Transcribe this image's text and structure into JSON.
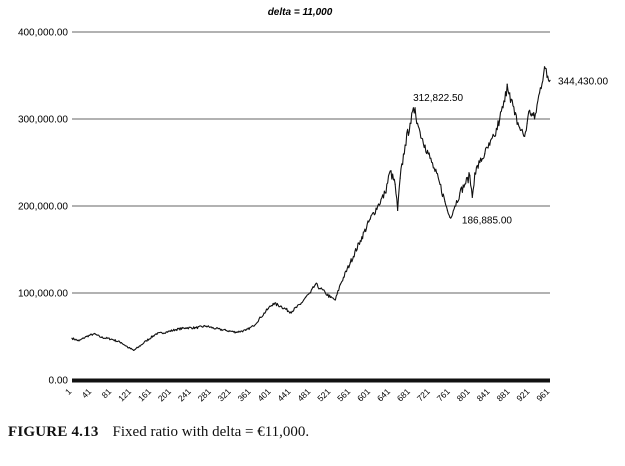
{
  "chart_data": {
    "type": "line",
    "title": "delta = 11,000",
    "xlabel": "",
    "ylabel": "",
    "xlim": [
      1,
      961
    ],
    "ylim": [
      0,
      400000
    ],
    "yticks": [
      {
        "value": 0,
        "label": "0.00"
      },
      {
        "value": 100000,
        "label": "100,000.00"
      },
      {
        "value": 200000,
        "label": "200,000.00"
      },
      {
        "value": 300000,
        "label": "300,000.00"
      },
      {
        "value": 400000,
        "label": "400,000.00"
      }
    ],
    "xticks": [
      "1",
      "41",
      "81",
      "121",
      "161",
      "201",
      "241",
      "281",
      "321",
      "361",
      "401",
      "441",
      "481",
      "521",
      "561",
      "601",
      "641",
      "681",
      "721",
      "761",
      "801",
      "841",
      "881",
      "921",
      "961"
    ],
    "grid": "horizontal",
    "series": [
      {
        "x": [
          1,
          15,
          30,
          45,
          60,
          80,
          100,
          115,
          125,
          135,
          150,
          170,
          190,
          210,
          230,
          250,
          270,
          290,
          310,
          330,
          350,
          365,
          380,
          395,
          405,
          420,
          440,
          460,
          470,
          480,
          490,
          500,
          510,
          520,
          530,
          540,
          560,
          580,
          600,
          615,
          630,
          640,
          650,
          655,
          660,
          670,
          680,
          690,
          695,
          700,
          710,
          720,
          730,
          740,
          750,
          755,
          760,
          770,
          780,
          790,
          800,
          805,
          810,
          820,
          830,
          840,
          850,
          860,
          870,
          875,
          880,
          890,
          900,
          910,
          915,
          920,
          930,
          940,
          950,
          955,
          961
        ],
        "y": [
          48000,
          45000,
          50000,
          53000,
          49000,
          47000,
          43000,
          37000,
          34000,
          38000,
          45000,
          53000,
          55000,
          58000,
          60000,
          60000,
          62000,
          59000,
          57000,
          55000,
          57000,
          62000,
          72000,
          82000,
          88000,
          85000,
          78000,
          87000,
          95000,
          100000,
          110000,
          105000,
          100000,
          95000,
          92000,
          110000,
          135000,
          160000,
          185000,
          200000,
          215000,
          240000,
          225000,
          195000,
          232000,
          270000,
          295000,
          312822.5,
          295000,
          285000,
          270000,
          255000,
          240000,
          225000,
          205000,
          195000,
          186885,
          200000,
          215000,
          225000,
          235000,
          210000,
          238000,
          250000,
          260000,
          270000,
          280000,
          300000,
          320000,
          340000,
          330000,
          305000,
          290000,
          280000,
          295000,
          310000,
          300000,
          330000,
          360000,
          348000,
          344430
        ]
      }
    ],
    "annotations": [
      {
        "x": 690,
        "y": 312822.5,
        "label": "312,822.50",
        "position": "above-right"
      },
      {
        "x": 760,
        "y": 186885,
        "label": "186,885.00",
        "position": "right"
      },
      {
        "x": 961,
        "y": 344430,
        "label": "344,430.00",
        "position": "right"
      }
    ]
  },
  "caption": {
    "label": "FIGURE 4.13",
    "text": "Fixed ratio with delta = €11,000."
  }
}
